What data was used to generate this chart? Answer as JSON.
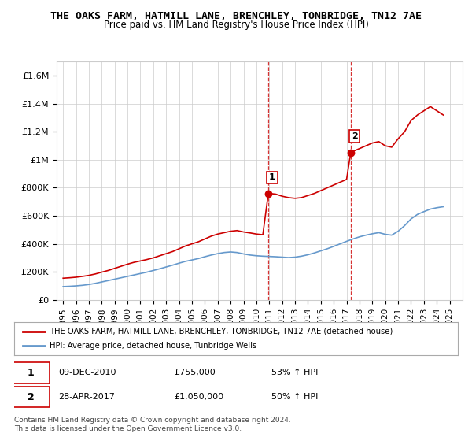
{
  "title": "THE OAKS FARM, HATMILL LANE, BRENCHLEY, TONBRIDGE, TN12 7AE",
  "subtitle": "Price paid vs. HM Land Registry's House Price Index (HPI)",
  "ylabel_ticks": [
    "£0",
    "£200K",
    "£400K",
    "£600K",
    "£800K",
    "£1M",
    "£1.2M",
    "£1.4M",
    "£1.6M"
  ],
  "ytick_values": [
    0,
    200000,
    400000,
    600000,
    800000,
    1000000,
    1200000,
    1400000,
    1600000
  ],
  "ylim": [
    0,
    1700000
  ],
  "xlim_start": 1995,
  "xlim_end": 2026,
  "xtick_years": [
    1995,
    1996,
    1997,
    1998,
    1999,
    2000,
    2001,
    2002,
    2003,
    2004,
    2005,
    2006,
    2007,
    2008,
    2009,
    2010,
    2011,
    2012,
    2013,
    2014,
    2015,
    2016,
    2017,
    2018,
    2019,
    2020,
    2021,
    2022,
    2023,
    2024,
    2025
  ],
  "sale1_x": 2010.92,
  "sale1_y": 755000,
  "sale1_label": "1",
  "sale2_x": 2017.32,
  "sale2_y": 1050000,
  "sale2_label": "2",
  "red_line_color": "#cc0000",
  "blue_line_color": "#6699cc",
  "vline_color": "#cc0000",
  "legend_line1": "THE OAKS FARM, HATMILL LANE, BRENCHLEY, TONBRIDGE, TN12 7AE (detached house)",
  "legend_line2": "HPI: Average price, detached house, Tunbridge Wells",
  "table_row1": [
    "1",
    "09-DEC-2010",
    "£755,000",
    "53% ↑ HPI"
  ],
  "table_row2": [
    "2",
    "28-APR-2017",
    "£1,050,000",
    "50% ↑ HPI"
  ],
  "footnote": "Contains HM Land Registry data © Crown copyright and database right 2024.\nThis data is licensed under the Open Government Licence v3.0.",
  "background_color": "#ffffff",
  "grid_color": "#cccccc",
  "red_data_x": [
    1995.0,
    1995.5,
    1996.0,
    1996.5,
    1997.0,
    1997.5,
    1998.0,
    1998.5,
    1999.0,
    1999.5,
    2000.0,
    2000.5,
    2001.0,
    2001.5,
    2002.0,
    2002.5,
    2003.0,
    2003.5,
    2004.0,
    2004.5,
    2005.0,
    2005.5,
    2006.0,
    2006.5,
    2007.0,
    2007.5,
    2008.0,
    2008.5,
    2009.0,
    2009.5,
    2010.0,
    2010.5,
    2010.92,
    2011.0,
    2011.5,
    2012.0,
    2012.5,
    2013.0,
    2013.5,
    2014.0,
    2014.5,
    2015.0,
    2015.5,
    2016.0,
    2016.5,
    2017.0,
    2017.32,
    2017.5,
    2018.0,
    2018.5,
    2019.0,
    2019.5,
    2020.0,
    2020.5,
    2021.0,
    2021.5,
    2022.0,
    2022.5,
    2023.0,
    2023.5,
    2024.0,
    2024.5
  ],
  "red_data_y": [
    155000,
    158000,
    162000,
    168000,
    175000,
    185000,
    198000,
    210000,
    225000,
    240000,
    255000,
    268000,
    278000,
    288000,
    300000,
    315000,
    330000,
    345000,
    365000,
    385000,
    400000,
    415000,
    435000,
    455000,
    470000,
    480000,
    490000,
    495000,
    485000,
    478000,
    470000,
    465000,
    755000,
    760000,
    755000,
    740000,
    730000,
    725000,
    730000,
    745000,
    760000,
    780000,
    800000,
    820000,
    840000,
    860000,
    1050000,
    1060000,
    1080000,
    1100000,
    1120000,
    1130000,
    1100000,
    1090000,
    1150000,
    1200000,
    1280000,
    1320000,
    1350000,
    1380000,
    1350000,
    1320000
  ],
  "blue_data_x": [
    1995.0,
    1995.5,
    1996.0,
    1996.5,
    1997.0,
    1997.5,
    1998.0,
    1998.5,
    1999.0,
    1999.5,
    2000.0,
    2000.5,
    2001.0,
    2001.5,
    2002.0,
    2002.5,
    2003.0,
    2003.5,
    2004.0,
    2004.5,
    2005.0,
    2005.5,
    2006.0,
    2006.5,
    2007.0,
    2007.5,
    2008.0,
    2008.5,
    2009.0,
    2009.5,
    2010.0,
    2010.5,
    2011.0,
    2011.5,
    2012.0,
    2012.5,
    2013.0,
    2013.5,
    2014.0,
    2014.5,
    2015.0,
    2015.5,
    2016.0,
    2016.5,
    2017.0,
    2017.5,
    2018.0,
    2018.5,
    2019.0,
    2019.5,
    2020.0,
    2020.5,
    2021.0,
    2021.5,
    2022.0,
    2022.5,
    2023.0,
    2023.5,
    2024.0,
    2024.5
  ],
  "blue_data_y": [
    95000,
    97000,
    100000,
    104000,
    110000,
    118000,
    128000,
    138000,
    148000,
    158000,
    168000,
    178000,
    188000,
    198000,
    210000,
    222000,
    235000,
    248000,
    262000,
    275000,
    285000,
    295000,
    308000,
    320000,
    330000,
    338000,
    342000,
    338000,
    328000,
    320000,
    315000,
    312000,
    310000,
    308000,
    305000,
    302000,
    305000,
    312000,
    322000,
    335000,
    350000,
    365000,
    382000,
    400000,
    418000,
    435000,
    450000,
    462000,
    472000,
    480000,
    468000,
    462000,
    490000,
    530000,
    578000,
    610000,
    630000,
    648000,
    658000,
    665000
  ]
}
